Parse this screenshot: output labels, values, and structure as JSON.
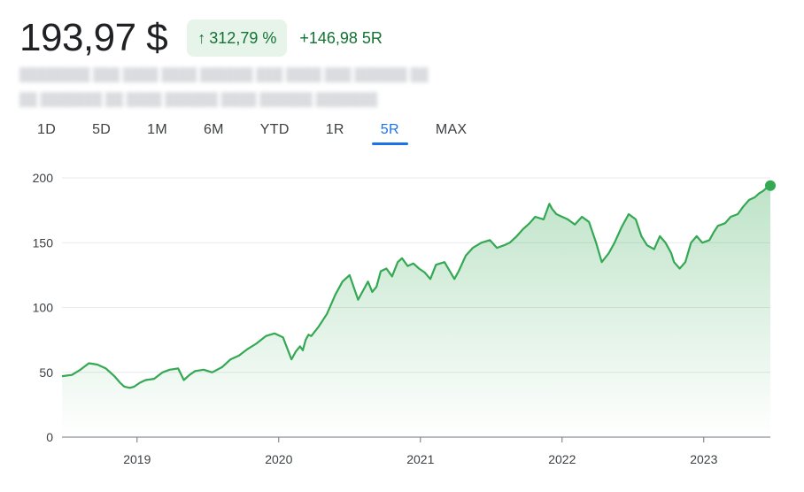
{
  "quote": {
    "price": "193,97 $",
    "change_pct": "312,79 %",
    "change_abs": "+146,98 5R",
    "arrow": "↑",
    "accent": "#137333",
    "badge_bg": "#e6f4ea"
  },
  "ranges": [
    "1D",
    "5D",
    "1M",
    "6M",
    "YTD",
    "1R",
    "5R",
    "MAX"
  ],
  "active_range": "5R",
  "chart_data": {
    "type": "area",
    "color": "#34a853",
    "ylim": [
      0,
      200
    ],
    "yticks": [
      0,
      50,
      100,
      150,
      200
    ],
    "xlim": [
      2018.47,
      2023.47
    ],
    "xticks": [
      {
        "x": 2019,
        "label": "2019"
      },
      {
        "x": 2020,
        "label": "2020"
      },
      {
        "x": 2021,
        "label": "2021"
      },
      {
        "x": 2022,
        "label": "2022"
      },
      {
        "x": 2023,
        "label": "2023"
      }
    ],
    "grid": true,
    "end_marker": true,
    "series": [
      {
        "x": [
          2018.47,
          2018.54,
          2018.6,
          2018.66,
          2018.72,
          2018.78,
          2018.84,
          2018.88,
          2018.91,
          2018.95,
          2018.98,
          2019.02,
          2019.06,
          2019.12,
          2019.18,
          2019.23,
          2019.29,
          2019.33,
          2019.37,
          2019.41,
          2019.47,
          2019.53,
          2019.6,
          2019.66,
          2019.72,
          2019.78,
          2019.84,
          2019.91,
          2019.97,
          2020.03,
          2020.09,
          2020.12,
          2020.15,
          2020.17,
          2020.19,
          2020.21,
          2020.23,
          2020.28,
          2020.34,
          2020.4,
          2020.45,
          2020.5,
          2020.56,
          2020.6,
          2020.63,
          2020.66,
          2020.69,
          2020.72,
          2020.76,
          2020.8,
          2020.84,
          2020.87,
          2020.91,
          2020.95,
          2020.99,
          2021.03,
          2021.07,
          2021.11,
          2021.17,
          2021.24,
          2021.27,
          2021.32,
          2021.37,
          2021.43,
          2021.49,
          2021.54,
          2021.59,
          2021.63,
          2021.68,
          2021.72,
          2021.77,
          2021.81,
          2021.87,
          2021.91,
          2021.93,
          2021.96,
          2022.0,
          2022.04,
          2022.09,
          2022.14,
          2022.19,
          2022.24,
          2022.28,
          2022.33,
          2022.37,
          2022.42,
          2022.47,
          2022.52,
          2022.56,
          2022.6,
          2022.65,
          2022.69,
          2022.73,
          2022.77,
          2022.79,
          2022.83,
          2022.87,
          2022.91,
          2022.95,
          2022.99,
          2023.04,
          2023.07,
          2023.1,
          2023.15,
          2023.19,
          2023.24,
          2023.28,
          2023.32,
          2023.36,
          2023.39,
          2023.42,
          2023.45,
          2023.47
        ],
        "y": [
          47,
          48,
          52,
          57,
          56,
          53,
          47,
          42,
          39,
          38,
          39,
          42,
          44,
          45,
          50,
          52,
          53,
          44,
          48,
          51,
          52,
          50,
          54,
          60,
          63,
          68,
          72,
          78,
          80,
          77,
          60,
          66,
          70,
          67,
          75,
          79,
          78,
          85,
          95,
          110,
          120,
          125,
          106,
          114,
          120,
          112,
          116,
          128,
          130,
          124,
          135,
          138,
          132,
          134,
          130,
          127,
          122,
          133,
          135,
          122,
          128,
          140,
          146,
          150,
          152,
          146,
          148,
          150,
          155,
          160,
          165,
          170,
          168,
          180,
          176,
          172,
          170,
          168,
          164,
          170,
          166,
          150,
          135,
          142,
          150,
          162,
          172,
          168,
          155,
          148,
          145,
          155,
          150,
          142,
          135,
          130,
          135,
          150,
          155,
          150,
          152,
          158,
          163,
          165,
          170,
          172,
          178,
          183,
          185,
          188,
          190,
          193,
          194
        ]
      }
    ]
  }
}
